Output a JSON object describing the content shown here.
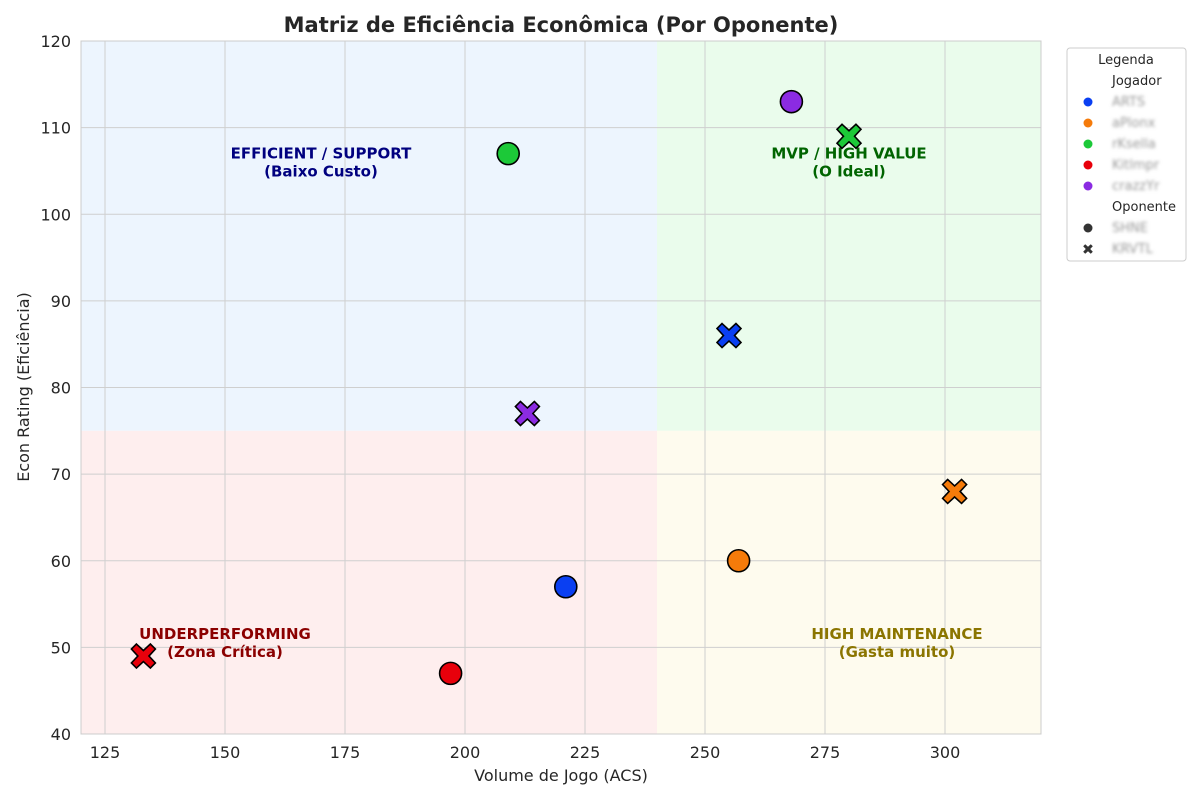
{
  "chart_data": {
    "type": "scatter",
    "title": "Matriz de Eficiência Econômica (Por Oponente)",
    "xlabel": "Volume de Jogo (ACS)",
    "ylabel": "Econ Rating (Eficiência)",
    "xlim": [
      120,
      320
    ],
    "ylim": [
      40,
      120
    ],
    "xticks": [
      125,
      150,
      175,
      200,
      225,
      250,
      275,
      300
    ],
    "yticks": [
      40,
      50,
      60,
      70,
      80,
      90,
      100,
      110,
      120
    ],
    "grid": true,
    "thresholds": {
      "x": 240,
      "y": 75
    },
    "quadrants": [
      {
        "key": "efficient",
        "label1": "EFFICIENT / SUPPORT",
        "label2": "(Baixo Custo)",
        "color": "#00007f",
        "fill": "#edf5fe"
      },
      {
        "key": "mvp",
        "label1": "MVP / HIGH VALUE",
        "label2": "(O Ideal)",
        "color": "#006400",
        "fill": "#eafcec"
      },
      {
        "key": "under",
        "label1": "UNDERPERFORMING",
        "label2": "(Zona Crítica)",
        "color": "#8b0000",
        "fill": "#feeeee"
      },
      {
        "key": "high",
        "label1": "HIGH MAINTENANCE",
        "label2": "(Gasta muito)",
        "color": "#8b7500",
        "fill": "#fefbee"
      }
    ],
    "legend": {
      "title": "Legenda",
      "placement": "outside-top-right",
      "hue_title": "Jogador",
      "style_title": "Oponente",
      "players": [
        {
          "name": "ARTS",
          "color": "#0a3ff2"
        },
        {
          "name": "aPlonx",
          "color": "#f57b0a"
        },
        {
          "name": "rKsella",
          "color": "#1cc938"
        },
        {
          "name": "Kitlmpr",
          "color": "#e8000b"
        },
        {
          "name": "crazzYr",
          "color": "#8b2be2"
        }
      ],
      "opponents": [
        {
          "name": "SHNE",
          "marker": "circle"
        },
        {
          "name": "KRVTL",
          "marker": "x"
        }
      ]
    },
    "series": [
      {
        "player": 0,
        "opponent": 0,
        "x": 221,
        "y": 57
      },
      {
        "player": 0,
        "opponent": 1,
        "x": 255,
        "y": 86
      },
      {
        "player": 1,
        "opponent": 0,
        "x": 257,
        "y": 60
      },
      {
        "player": 1,
        "opponent": 1,
        "x": 302,
        "y": 68
      },
      {
        "player": 2,
        "opponent": 0,
        "x": 209,
        "y": 107
      },
      {
        "player": 2,
        "opponent": 1,
        "x": 280,
        "y": 109
      },
      {
        "player": 3,
        "opponent": 0,
        "x": 197,
        "y": 47
      },
      {
        "player": 3,
        "opponent": 1,
        "x": 133,
        "y": 49
      },
      {
        "player": 4,
        "opponent": 0,
        "x": 268,
        "y": 113
      },
      {
        "player": 4,
        "opponent": 1,
        "x": 213,
        "y": 77
      }
    ]
  }
}
